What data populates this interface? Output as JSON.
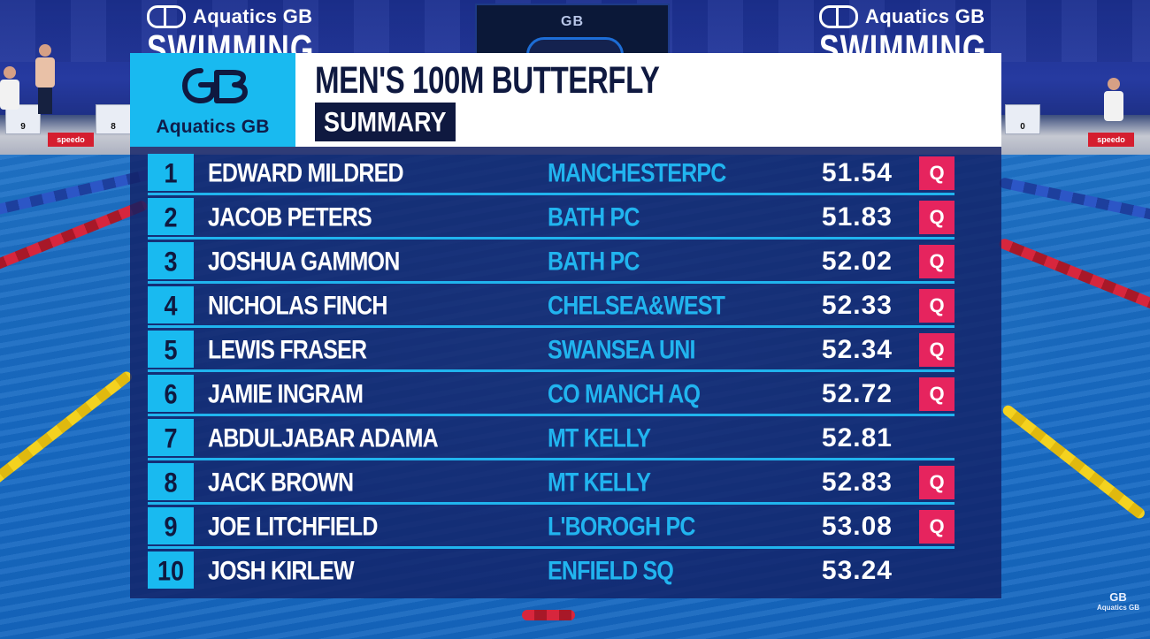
{
  "venue": {
    "left_brand": "Aquatics GB",
    "left_brand_sub": "SWIMMING",
    "right_brand": "Aquatics GB",
    "right_brand_sub": "SWIMMING",
    "screen_logo": "GB",
    "block_numbers": [
      "9",
      "8",
      "0"
    ],
    "sponsor_label": "speedo"
  },
  "header": {
    "logo_mark": "GB",
    "logo_text": "Aquatics GB",
    "title": "MEN'S 100M BUTTERFLY",
    "subtitle": "SUMMARY"
  },
  "results": [
    {
      "rank": "1",
      "name": "EDWARD MILDRED",
      "club": "MANCHESTERPC",
      "time": "51.54",
      "qualified": "Q"
    },
    {
      "rank": "2",
      "name": "JACOB PETERS",
      "club": "BATH PC",
      "time": "51.83",
      "qualified": "Q"
    },
    {
      "rank": "3",
      "name": "JOSHUA GAMMON",
      "club": "BATH PC",
      "time": "52.02",
      "qualified": "Q"
    },
    {
      "rank": "4",
      "name": "NICHOLAS FINCH",
      "club": "CHELSEA&WEST",
      "time": "52.33",
      "qualified": "Q"
    },
    {
      "rank": "5",
      "name": "LEWIS FRASER",
      "club": "SWANSEA UNI",
      "time": "52.34",
      "qualified": "Q"
    },
    {
      "rank": "6",
      "name": "JAMIE INGRAM",
      "club": "CO MANCH AQ",
      "time": "52.72",
      "qualified": "Q"
    },
    {
      "rank": "7",
      "name": "ABDULJABAR ADAMA",
      "club": "MT KELLY",
      "time": "52.81",
      "qualified": ""
    },
    {
      "rank": "8",
      "name": "JACK BROWN",
      "club": "MT KELLY",
      "time": "52.83",
      "qualified": "Q"
    },
    {
      "rank": "9",
      "name": "JOE LITCHFIELD",
      "club": "L'BOROGH PC",
      "time": "53.08",
      "qualified": "Q"
    },
    {
      "rank": "10",
      "name": "JOSH KIRLEW",
      "club": "ENFIELD SQ",
      "time": "53.24",
      "qualified": ""
    }
  ],
  "corner_logo": {
    "mark": "GB",
    "text": "Aquatics GB"
  },
  "colors": {
    "accent_cyan": "#19baf0",
    "navy": "#0f1940",
    "club_text": "#21b4ef",
    "qualifier": "#e6245e"
  }
}
